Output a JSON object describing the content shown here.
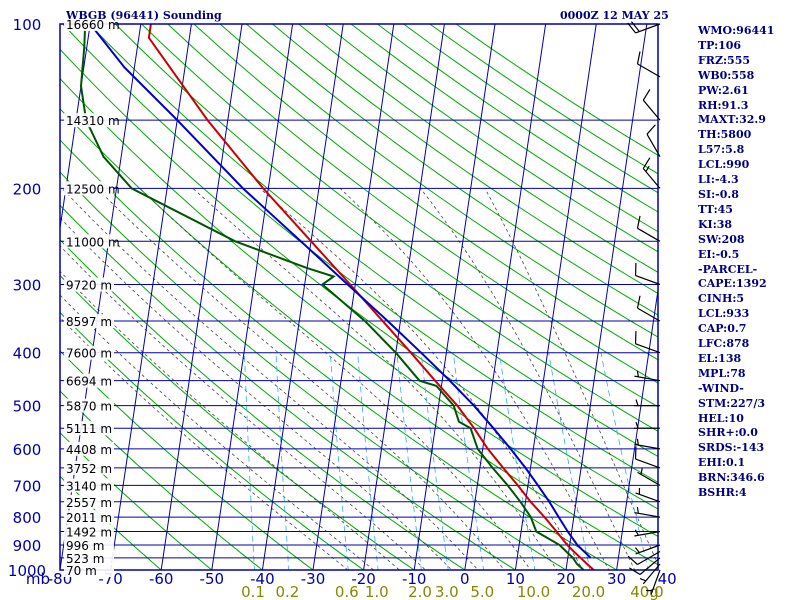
{
  "header": {
    "station": "WBGB (96441) Sounding",
    "datetime": "0000Z 12 MAY 25"
  },
  "indices": [
    "WMO:96441",
    "TP:106",
    "FRZ:555",
    "WB0:558",
    "PW:2.61",
    "RH:91.3",
    "MAXT:32.9",
    "TH:5800",
    "L57:5.8",
    "LCL:990",
    "LI:-4.3",
    "SI:-0.8",
    "TT:45",
    "KI:38",
    "SW:208",
    "EI:-0.5",
    "-PARCEL-",
    "CAPE:1392",
    "CINH:5",
    "LCL:933",
    "CAP:0.7",
    "LFC:878",
    "EL:138",
    "MPL:78",
    "-WIND-",
    "STM:227/3",
    "HEL:10",
    "SHR+:0.0",
    "SRDS:-143",
    "EHI:0.1",
    "BRN:346.6",
    "BSHR:4"
  ],
  "colors": {
    "frame": "#0000aa",
    "axis_text": "#0000aa",
    "dry_adiabat": "#00aa00",
    "moist_adiabat": "#444444",
    "mixing_ratio": "#33aaff",
    "mixing_ratio_labels": "#888800",
    "temperature": "#cc0000",
    "dewpoint": "#005500",
    "parcel": "#0000cc",
    "wind_barbs": "#000000",
    "height_labels": "#ffffff"
  },
  "chart_data": {
    "type": "line",
    "title": "WBGB (96441) Sounding",
    "xlabel": "",
    "ylabel": "mb",
    "x_unit_label": "g",
    "y_scale": "log",
    "xlim": [
      -80,
      40
    ],
    "ylim": [
      1000,
      100
    ],
    "pressure_ticks": [
      100,
      200,
      300,
      400,
      500,
      600,
      700,
      800,
      900,
      1000
    ],
    "temperature_ticks": [
      -80,
      -70,
      -60,
      -50,
      -40,
      -30,
      -20,
      -10,
      0,
      10,
      20,
      30,
      40
    ],
    "mixing_ratio_labels": [
      "0.1",
      "0.2",
      "0.6",
      "1.0",
      "2.0",
      "3.0",
      "5.0",
      "10.0",
      "20.0",
      "40.0"
    ],
    "mixing_ratio_values": [
      0.1,
      0.2,
      0.6,
      1.0,
      2.0,
      3.0,
      5.0,
      10.0,
      20.0,
      40.0
    ],
    "height_labels": [
      {
        "p": 100,
        "text": "16660 m"
      },
      {
        "p": 150,
        "text": "14310 m"
      },
      {
        "p": 200,
        "text": "12500 m"
      },
      {
        "p": 250,
        "text": "11000 m"
      },
      {
        "p": 300,
        "text": "9720 m"
      },
      {
        "p": 350,
        "text": "8597 m"
      },
      {
        "p": 400,
        "text": "7600 m"
      },
      {
        "p": 450,
        "text": "6694 m"
      },
      {
        "p": 500,
        "text": "5870 m"
      },
      {
        "p": 550,
        "text": "5111 m"
      },
      {
        "p": 600,
        "text": "4408 m"
      },
      {
        "p": 650,
        "text": "3752 m"
      },
      {
        "p": 700,
        "text": "3140 m"
      },
      {
        "p": 750,
        "text": "2557 m"
      },
      {
        "p": 800,
        "text": "2011 m"
      },
      {
        "p": 850,
        "text": "1492 m"
      },
      {
        "p": 900,
        "text": "996 m"
      },
      {
        "p": 950,
        "text": "523 m"
      },
      {
        "p": 1000,
        "text": "70 m"
      }
    ],
    "series": [
      {
        "key": "temperature",
        "points": [
          [
            1008,
            26.5
          ],
          [
            1000,
            25.5
          ],
          [
            975,
            24.0
          ],
          [
            950,
            22.5
          ],
          [
            925,
            21.0
          ],
          [
            900,
            19.5
          ],
          [
            850,
            17.0
          ],
          [
            800,
            14.2
          ],
          [
            750,
            11.0
          ],
          [
            700,
            8.0
          ],
          [
            650,
            4.6
          ],
          [
            600,
            1.0
          ],
          [
            550,
            -2.3
          ],
          [
            500,
            -6.3
          ],
          [
            450,
            -11.4
          ],
          [
            400,
            -17.0
          ],
          [
            350,
            -23.5
          ],
          [
            300,
            -31.0
          ],
          [
            250,
            -40.0
          ],
          [
            200,
            -51.0
          ],
          [
            150,
            -64.0
          ],
          [
            120,
            -73.0
          ],
          [
            106,
            -78.0
          ],
          [
            100,
            -78.0
          ]
        ]
      },
      {
        "key": "dewpoint",
        "points": [
          [
            1008,
            24.0
          ],
          [
            1000,
            23.5
          ],
          [
            975,
            22.0
          ],
          [
            950,
            21.0
          ],
          [
            925,
            19.5
          ],
          [
            900,
            18.0
          ],
          [
            850,
            13.0
          ],
          [
            800,
            11.5
          ],
          [
            750,
            9.0
          ],
          [
            700,
            6.0
          ],
          [
            650,
            2.5
          ],
          [
            600,
            -1.0
          ],
          [
            550,
            -3.0
          ],
          [
            535,
            -5.5
          ],
          [
            500,
            -7.0
          ],
          [
            460,
            -11.0
          ],
          [
            450,
            -14.5
          ],
          [
            400,
            -20.0
          ],
          [
            350,
            -27.0
          ],
          [
            300,
            -36.5
          ],
          [
            290,
            -34.5
          ],
          [
            280,
            -40.0
          ],
          [
            250,
            -55.0
          ],
          [
            200,
            -77.0
          ],
          [
            175,
            -83.5
          ],
          [
            150,
            -88.0
          ],
          [
            130,
            -90.0
          ],
          [
            110,
            -90.5
          ],
          [
            100,
            -91.0
          ]
        ]
      },
      {
        "key": "parcel",
        "points": [
          [
            950,
            24.5
          ],
          [
            900,
            21.5
          ],
          [
            850,
            19.2
          ],
          [
            800,
            17.0
          ],
          [
            750,
            14.7
          ],
          [
            700,
            12.0
          ],
          [
            650,
            9.0
          ],
          [
            600,
            5.5
          ],
          [
            550,
            1.5
          ],
          [
            500,
            -3.0
          ],
          [
            450,
            -8.5
          ],
          [
            400,
            -15.0
          ],
          [
            350,
            -22.5
          ],
          [
            300,
            -31.5
          ],
          [
            250,
            -42.0
          ],
          [
            200,
            -55.0
          ],
          [
            150,
            -70.0
          ],
          [
            120,
            -82.0
          ],
          [
            100,
            -90.0
          ]
        ]
      }
    ],
    "wind": [
      {
        "p": 1000,
        "dir": 200,
        "spd": 5
      },
      {
        "p": 975,
        "dir": 220,
        "spd": 5
      },
      {
        "p": 950,
        "dir": 230,
        "spd": 10
      },
      {
        "p": 925,
        "dir": 240,
        "spd": 10
      },
      {
        "p": 900,
        "dir": 250,
        "spd": 5
      },
      {
        "p": 850,
        "dir": 260,
        "spd": 5
      },
      {
        "p": 800,
        "dir": 280,
        "spd": 5
      },
      {
        "p": 750,
        "dir": 290,
        "spd": 5
      },
      {
        "p": 700,
        "dir": 300,
        "spd": 5
      },
      {
        "p": 650,
        "dir": 290,
        "spd": 10
      },
      {
        "p": 600,
        "dir": 280,
        "spd": 5
      },
      {
        "p": 550,
        "dir": 270,
        "spd": 5
      },
      {
        "p": 500,
        "dir": 270,
        "spd": 5
      },
      {
        "p": 450,
        "dir": 280,
        "spd": 5
      },
      {
        "p": 400,
        "dir": 290,
        "spd": 10
      },
      {
        "p": 350,
        "dir": 300,
        "spd": 10
      },
      {
        "p": 300,
        "dir": 290,
        "spd": 10
      },
      {
        "p": 250,
        "dir": 300,
        "spd": 10
      },
      {
        "p": 200,
        "dir": 320,
        "spd": 15
      },
      {
        "p": 175,
        "dir": 330,
        "spd": 10
      },
      {
        "p": 150,
        "dir": 320,
        "spd": 10
      },
      {
        "p": 125,
        "dir": 300,
        "spd": 10
      },
      {
        "p": 100,
        "dir": 250,
        "spd": 20
      }
    ]
  }
}
